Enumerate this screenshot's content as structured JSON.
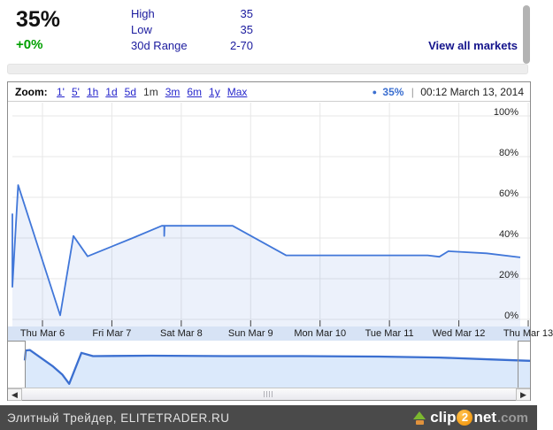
{
  "quote": {
    "price": "35%",
    "change": "+0%",
    "stats": [
      {
        "label": "High",
        "value": "35"
      },
      {
        "label": "Low",
        "value": "35"
      },
      {
        "label": "30d Range",
        "value": "2-70"
      }
    ],
    "view_all_label": "View all markets"
  },
  "toolbar": {
    "zoom_label": "Zoom:",
    "options": [
      {
        "label": "1'",
        "link": true
      },
      {
        "label": "5'",
        "link": true
      },
      {
        "label": "1h",
        "link": true
      },
      {
        "label": "1d",
        "link": true
      },
      {
        "label": "5d",
        "link": true
      },
      {
        "label": "1m",
        "link": false
      },
      {
        "label": "3m",
        "link": true
      },
      {
        "label": "6m",
        "link": true
      },
      {
        "label": "1y",
        "link": true
      },
      {
        "label": "Max",
        "link": true
      }
    ],
    "legend": {
      "dot": "●",
      "value": "35%",
      "separator": "|",
      "timestamp": "00:12 March 13, 2014"
    }
  },
  "chart_data": {
    "type": "line",
    "title": "",
    "unit": "%",
    "ylim": [
      0,
      100
    ],
    "grid": true,
    "y_tick_labels": [
      "100%",
      "80%",
      "60%",
      "40%",
      "20%",
      "0%"
    ],
    "x_tick_labels": [
      "Thu Mar 6",
      "Fri Mar 7",
      "Sat Mar 8",
      "Sun Mar 9",
      "Mon Mar 10",
      "Tue Mar 11",
      "Wed Mar 12",
      "Thu Mar 13"
    ],
    "series": [
      {
        "name": "35%",
        "color": "#4177d9",
        "points_day_value": [
          [
            -0.433,
            52
          ],
          [
            -0.433,
            16
          ],
          [
            -0.35,
            66
          ],
          [
            0.255,
            2
          ],
          [
            0.446,
            41
          ],
          [
            0.65,
            31
          ],
          [
            1.3,
            40
          ],
          [
            1.72,
            46
          ],
          [
            1.755,
            46
          ],
          [
            1.755,
            41
          ],
          [
            1.76,
            46
          ],
          [
            2.74,
            46
          ],
          [
            3.51,
            31.5
          ],
          [
            4.74,
            31.5
          ],
          [
            5.55,
            31.5
          ],
          [
            5.72,
            30.8
          ],
          [
            5.85,
            33.5
          ],
          [
            6.4,
            32.5
          ],
          [
            6.885,
            30.5
          ]
        ]
      }
    ],
    "navigator": {
      "color": "#3b6fd0",
      "points_pct_norm": [
        [
          0,
          58
        ],
        [
          0.2,
          79
        ],
        [
          1,
          80
        ],
        [
          5.6,
          45
        ],
        [
          7.4,
          28
        ],
        [
          8.8,
          8
        ],
        [
          11.2,
          74
        ],
        [
          13.5,
          67
        ],
        [
          25,
          68
        ],
        [
          40,
          67
        ],
        [
          55,
          67
        ],
        [
          70,
          66
        ],
        [
          82,
          64
        ],
        [
          92,
          60
        ],
        [
          100,
          57
        ]
      ]
    }
  },
  "scrollbars": {
    "left_arrow": "◀",
    "right_arrow": "▶"
  },
  "footer": {
    "attribution": "Элитный Трейдер, ELITETRADER.RU",
    "logo": {
      "clip": "clip",
      "two": "2",
      "net": "net",
      "dotcom": ".com"
    }
  },
  "colors": {
    "accent_blue": "#4177d9",
    "navigator_line": "#3b6fd0",
    "fill_blue": "rgba(65,119,217,0.10)",
    "navigator_fill": "#dbe9fb",
    "axis_strip": "#d7e3f5",
    "navy": "#1b1b9e",
    "green": "#00a000",
    "link_blue": "#2727cc"
  }
}
